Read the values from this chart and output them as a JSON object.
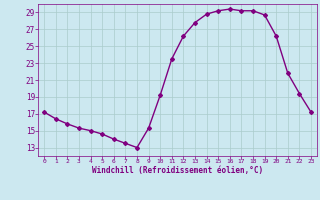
{
  "x": [
    0,
    1,
    2,
    3,
    4,
    5,
    6,
    7,
    8,
    9,
    10,
    11,
    12,
    13,
    14,
    15,
    16,
    17,
    18,
    19,
    20,
    21,
    22,
    23
  ],
  "y": [
    17.2,
    16.4,
    15.8,
    15.3,
    15.0,
    14.6,
    14.0,
    13.5,
    13.0,
    15.3,
    19.2,
    23.5,
    26.2,
    27.8,
    28.8,
    29.2,
    29.4,
    29.2,
    29.2,
    28.7,
    26.2,
    21.8,
    19.4,
    17.2
  ],
  "line_color": "#800080",
  "marker": "D",
  "marker_size": 2,
  "bg_color": "#cce8f0",
  "grid_color": "#aacccc",
  "xlabel": "Windchill (Refroidissement éolien,°C)",
  "xlabel_color": "#800080",
  "tick_color": "#800080",
  "yticks": [
    13,
    15,
    17,
    19,
    21,
    23,
    25,
    27,
    29
  ],
  "xticks": [
    0,
    1,
    2,
    3,
    4,
    5,
    6,
    7,
    8,
    9,
    10,
    11,
    12,
    13,
    14,
    15,
    16,
    17,
    18,
    19,
    20,
    21,
    22,
    23
  ],
  "ylim": [
    12.0,
    30.0
  ],
  "xlim": [
    -0.5,
    23.5
  ]
}
